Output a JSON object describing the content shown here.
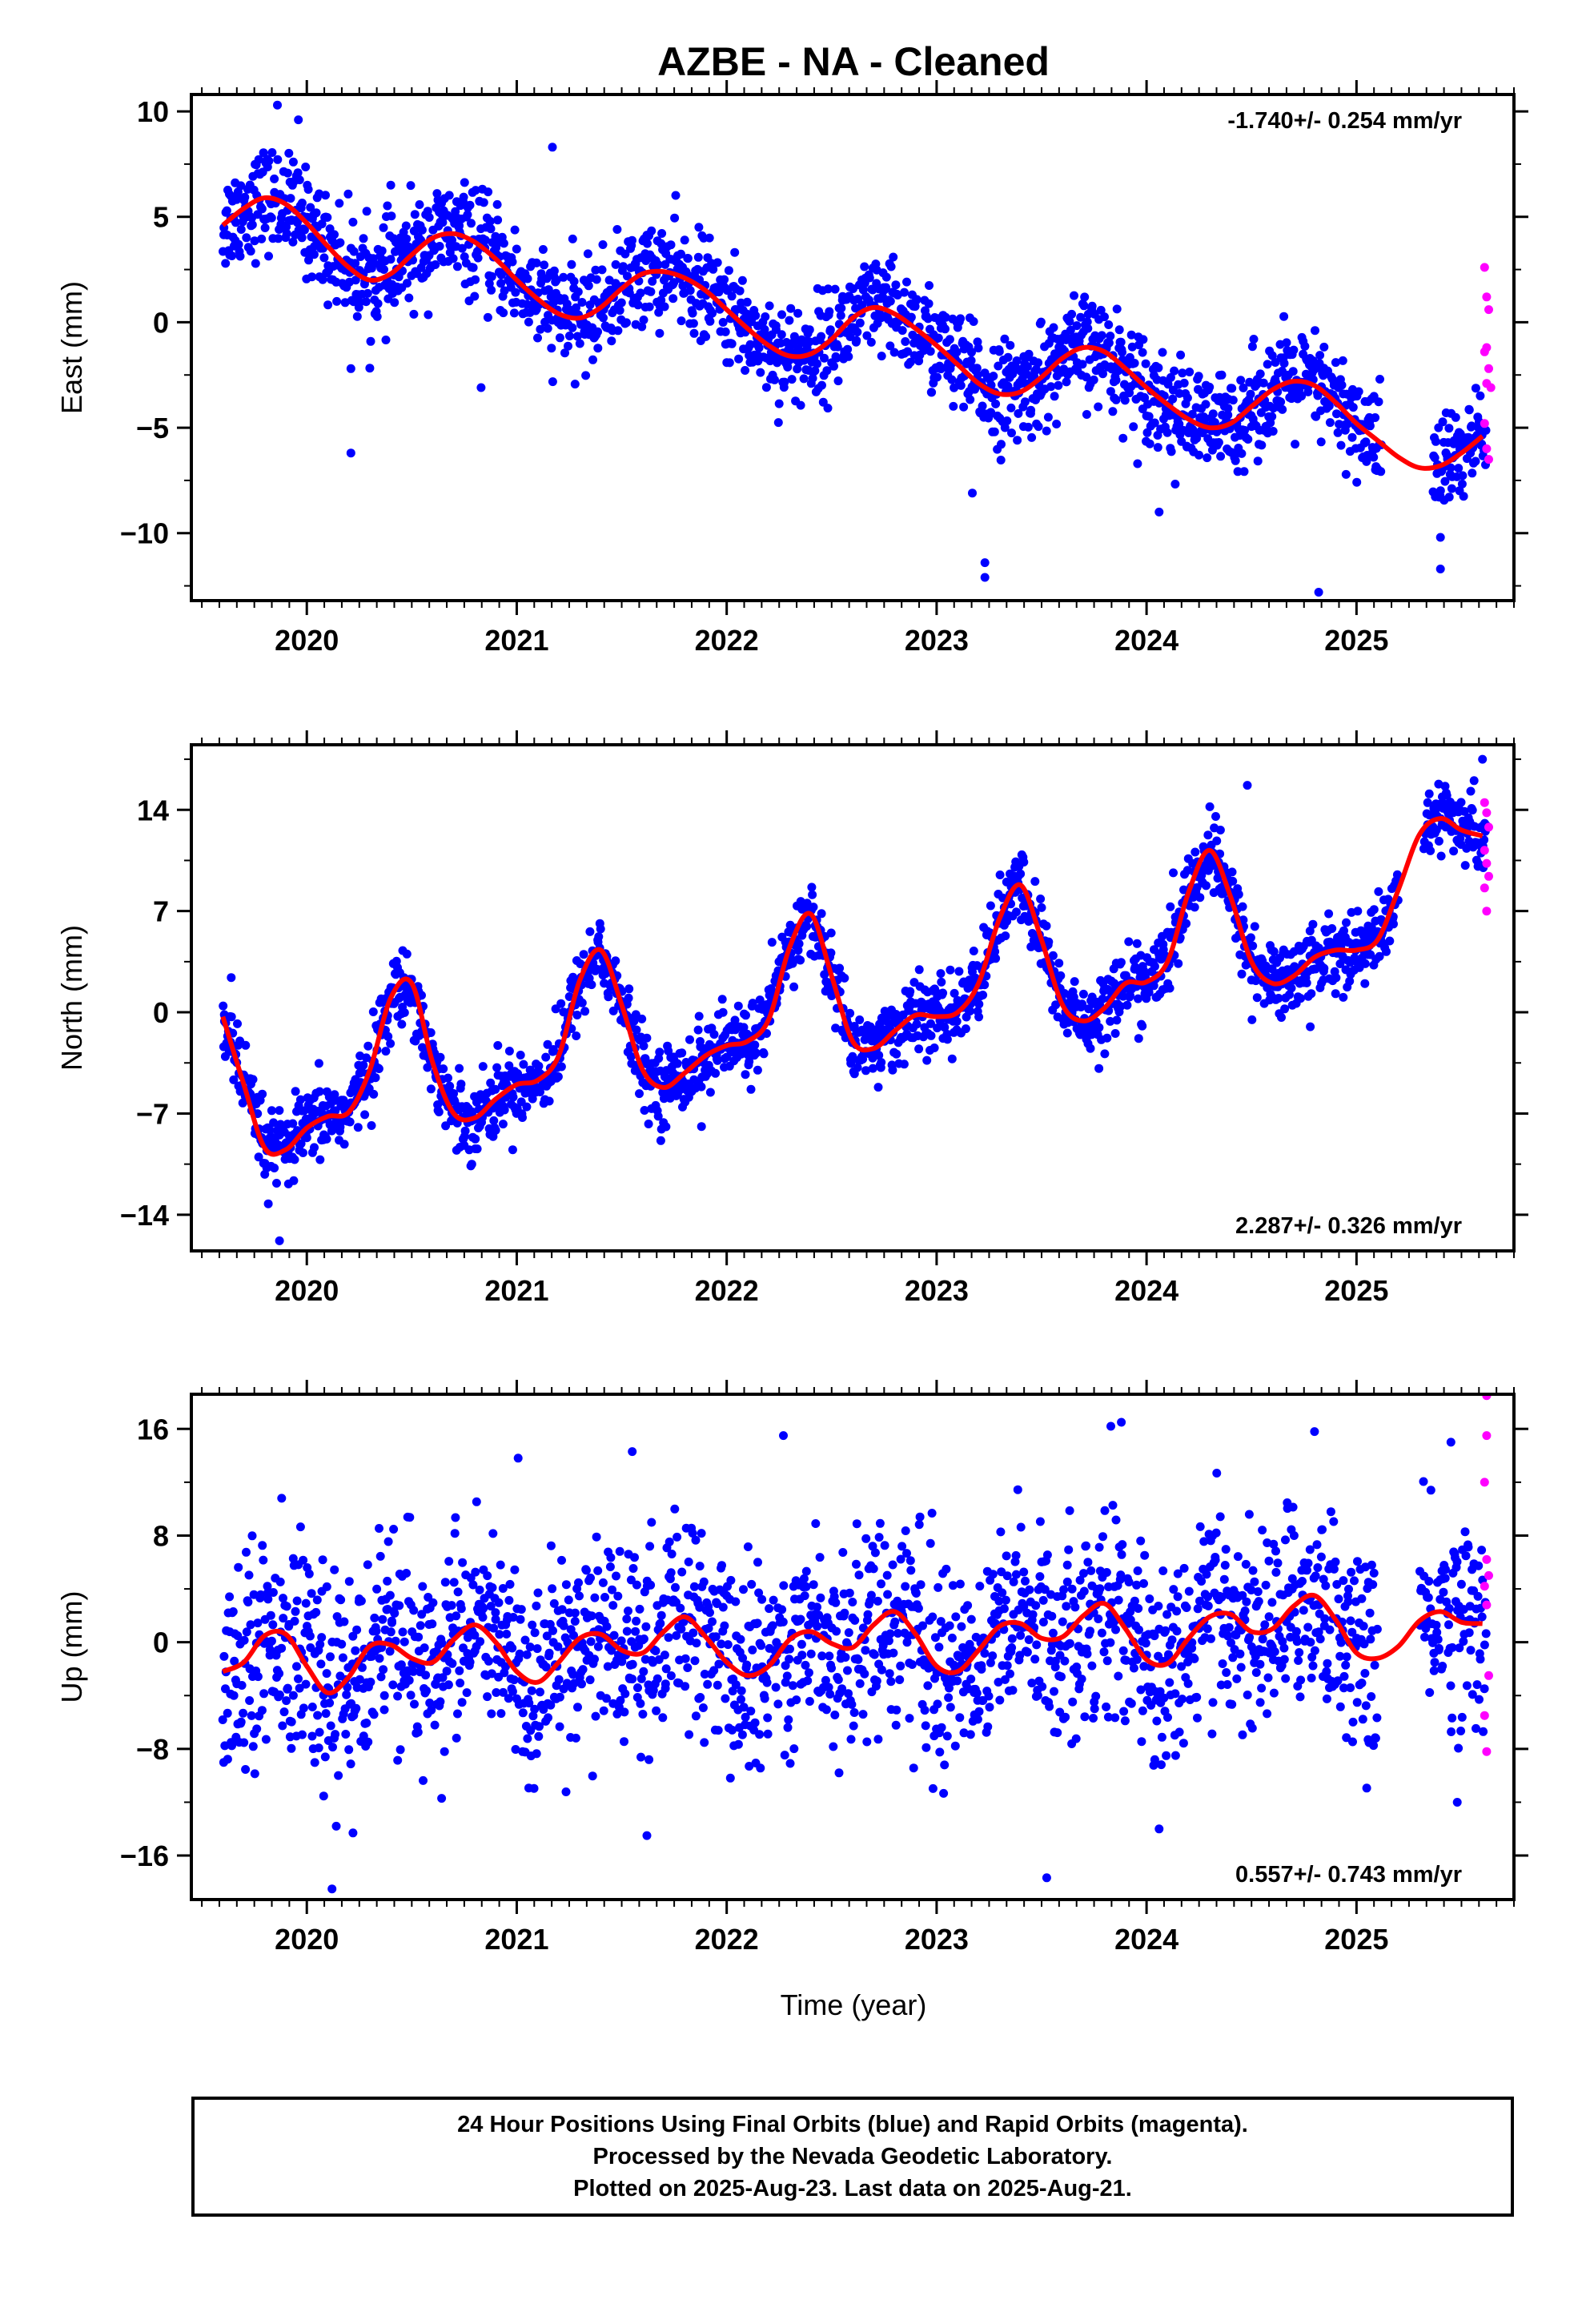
{
  "title": "AZBE  - NA - Cleaned",
  "xlabel": "Time (year)",
  "footer": {
    "line1": "24 Hour Positions Using Final Orbits (blue) and Rapid Orbits (magenta).",
    "line2": "Processed by the Nevada Geodetic Laboratory.",
    "line3": "Plotted on 2025-Aug-23. Last data on 2025-Aug-21."
  },
  "colors": {
    "final": "#0000ff",
    "rapid": "#ff00ff",
    "model": "#ff0000",
    "axis": "#000000"
  },
  "chart_data": [
    {
      "type": "scatter",
      "ylabel": "East (mm)",
      "rate_text": "-1.740+/- 0.254 mm/yr",
      "xlim": [
        2019.45,
        2025.75
      ],
      "ylim": [
        -13.2,
        10.8
      ],
      "yticks": [
        10,
        5,
        0,
        -5,
        -10
      ],
      "ytick_labels": [
        "10",
        "5",
        "0",
        "−5",
        "−10"
      ],
      "xticks": [
        2020,
        2021,
        2022,
        2023,
        2024,
        2025
      ],
      "xtick_labels": [
        "2020",
        "2021",
        "2022",
        "2023",
        "2024",
        "2025"
      ],
      "model": {
        "x": [
          2019.6,
          2019.7,
          2019.8,
          2019.9,
          2020.0,
          2020.1,
          2020.2,
          2020.3,
          2020.4,
          2020.5,
          2020.6,
          2020.7,
          2020.8,
          2020.9,
          2021.0,
          2021.1,
          2021.2,
          2021.3,
          2021.4,
          2021.5,
          2021.6,
          2021.7,
          2021.8,
          2021.9,
          2022.0,
          2022.1,
          2022.2,
          2022.3,
          2022.4,
          2022.5,
          2022.6,
          2022.7,
          2022.8,
          2022.9,
          2023.0,
          2023.1,
          2023.2,
          2023.3,
          2023.4,
          2023.5,
          2023.6,
          2023.7,
          2023.8,
          2023.9,
          2024.0,
          2024.1,
          2024.2,
          2024.3,
          2024.4,
          2024.5,
          2024.6,
          2024.7,
          2024.8,
          2024.9,
          2025.0,
          2025.1,
          2025.2,
          2025.3,
          2025.4,
          2025.5,
          2025.6
        ],
        "y": [
          4.6,
          5.4,
          5.9,
          5.6,
          4.7,
          3.6,
          2.6,
          2.0,
          2.3,
          3.2,
          4.0,
          4.2,
          3.8,
          3.0,
          2.0,
          1.1,
          0.4,
          0.2,
          0.7,
          1.6,
          2.3,
          2.4,
          2.1,
          1.5,
          0.6,
          -0.3,
          -1.1,
          -1.6,
          -1.5,
          -0.8,
          0.2,
          0.7,
          0.4,
          -0.3,
          -1.1,
          -2.0,
          -2.9,
          -3.4,
          -3.3,
          -2.6,
          -1.7,
          -1.2,
          -1.4,
          -2.2,
          -3.1,
          -3.9,
          -4.6,
          -5.0,
          -4.8,
          -4.0,
          -3.2,
          -2.8,
          -3.0,
          -3.8,
          -4.8,
          -5.6,
          -6.4,
          -6.9,
          -6.8,
          -6.2,
          -5.4
        ]
      },
      "final_band": {
        "x": [
          2019.6,
          2019.7,
          2019.8,
          2019.9,
          2020.0,
          2020.1,
          2020.2,
          2020.3,
          2020.4,
          2020.5,
          2020.6,
          2020.7,
          2020.8,
          2020.9,
          2021.0,
          2021.1,
          2021.2,
          2021.3,
          2021.4,
          2021.5,
          2021.6,
          2021.7,
          2021.8,
          2021.9,
          2022.0,
          2022.1,
          2022.2,
          2022.3,
          2022.4,
          2022.5,
          2022.6,
          2022.7,
          2022.8,
          2022.9,
          2023.0,
          2023.1,
          2023.2,
          2023.3,
          2023.4,
          2023.5,
          2023.6,
          2023.7,
          2023.8,
          2023.9,
          2024.0,
          2024.1,
          2024.2,
          2024.3,
          2024.4,
          2024.5,
          2024.6,
          2024.7,
          2024.8,
          2024.9,
          2025.0,
          2025.1,
          2025.2,
          2025.3,
          2025.4,
          2025.5,
          2025.6
        ],
        "center": [
          4.6,
          5.4,
          5.9,
          5.6,
          4.7,
          3.6,
          2.6,
          2.0,
          2.3,
          3.2,
          4.0,
          4.2,
          3.8,
          3.0,
          2.0,
          1.1,
          0.4,
          0.2,
          0.7,
          1.6,
          2.3,
          2.4,
          2.1,
          1.5,
          0.6,
          -0.3,
          -1.1,
          -1.6,
          -1.5,
          -0.8,
          0.2,
          0.7,
          0.4,
          -0.3,
          -1.1,
          -2.0,
          -2.9,
          -3.4,
          -3.3,
          -2.6,
          -1.7,
          -1.2,
          -1.4,
          -2.2,
          -3.1,
          -3.9,
          -4.6,
          -5.0,
          -4.8,
          -4.0,
          -3.2,
          -2.8,
          -3.0,
          -3.8,
          -4.8,
          -5.6,
          -6.4,
          -6.9,
          -6.8,
          -6.2,
          -5.4
        ],
        "spread": 1.6,
        "gaps": [
          [
            2025.12,
            2025.36
          ]
        ]
      },
      "final_outliers": [
        [
          2020.21,
          -6.2
        ],
        [
          2020.21,
          -2.2
        ],
        [
          2020.83,
          -3.1
        ],
        [
          2021.17,
          8.3
        ],
        [
          2023.17,
          -8.1
        ],
        [
          2023.23,
          -11.4
        ],
        [
          2023.23,
          -12.1
        ],
        [
          2024.06,
          -9.0
        ],
        [
          2024.82,
          -12.8
        ],
        [
          2025.4,
          -11.7
        ],
        [
          2025.4,
          -10.2
        ],
        [
          2019.86,
          10.3
        ],
        [
          2019.96,
          9.6
        ],
        [
          2020.4,
          6.5
        ]
      ],
      "rapid": [
        [
          2025.61,
          2.6
        ],
        [
          2025.62,
          1.2
        ],
        [
          2025.63,
          0.6
        ],
        [
          2025.62,
          -1.2
        ],
        [
          2025.61,
          -1.4
        ],
        [
          2025.63,
          -2.2
        ],
        [
          2025.62,
          -2.9
        ],
        [
          2025.64,
          -3.1
        ],
        [
          2025.61,
          -4.8
        ],
        [
          2025.62,
          -6.0
        ],
        [
          2025.63,
          -6.5
        ]
      ]
    },
    {
      "type": "scatter",
      "ylabel": "North (mm)",
      "rate_text": "2.287+/- 0.326 mm/yr",
      "xlim": [
        2019.45,
        2025.75
      ],
      "ylim": [
        -16.5,
        18.5
      ],
      "yticks": [
        14,
        7,
        0,
        -7,
        -14
      ],
      "ytick_labels": [
        "14",
        "7",
        "0",
        "−7",
        "−14"
      ],
      "xticks": [
        2020,
        2021,
        2022,
        2023,
        2024,
        2025
      ],
      "xtick_labels": [
        "2020",
        "2021",
        "2022",
        "2023",
        "2024",
        "2025"
      ],
      "model": {
        "x": [
          2019.6,
          2019.7,
          2019.8,
          2019.9,
          2020.0,
          2020.1,
          2020.2,
          2020.3,
          2020.4,
          2020.5,
          2020.6,
          2020.7,
          2020.8,
          2020.9,
          2021.0,
          2021.1,
          2021.2,
          2021.3,
          2021.4,
          2021.5,
          2021.6,
          2021.7,
          2021.8,
          2021.9,
          2022.0,
          2022.1,
          2022.2,
          2022.3,
          2022.4,
          2022.5,
          2022.6,
          2022.7,
          2022.8,
          2022.9,
          2023.0,
          2023.1,
          2023.2,
          2023.3,
          2023.4,
          2023.5,
          2023.6,
          2023.7,
          2023.8,
          2023.9,
          2024.0,
          2024.1,
          2024.2,
          2024.3,
          2024.4,
          2024.5,
          2024.6,
          2024.7,
          2024.8,
          2024.9,
          2025.0,
          2025.1,
          2025.2,
          2025.3,
          2025.4,
          2025.5,
          2025.6
        ],
        "y": [
          -0.3,
          -5.0,
          -9.4,
          -9.5,
          -8.0,
          -7.2,
          -6.9,
          -4.0,
          1.0,
          2.0,
          -3.5,
          -7.0,
          -7.3,
          -6.0,
          -5.0,
          -4.7,
          -3.0,
          2.2,
          4.3,
          0.5,
          -4.0,
          -5.2,
          -4.2,
          -3.0,
          -2.3,
          -2.0,
          -0.5,
          4.5,
          6.8,
          2.5,
          -2.0,
          -2.5,
          -1.3,
          -0.2,
          -0.3,
          0.0,
          2.0,
          6.5,
          8.8,
          5.0,
          0.5,
          -0.6,
          0.3,
          2.0,
          2.1,
          3.5,
          8.3,
          11.2,
          8.0,
          3.5,
          2.0,
          2.5,
          3.8,
          4.3,
          4.3,
          5.0,
          8.5,
          12.3,
          13.4,
          12.6,
          12.2
        ]
      },
      "final_band": {
        "x": [
          2019.6,
          2019.7,
          2019.8,
          2019.9,
          2020.0,
          2020.1,
          2020.2,
          2020.3,
          2020.4,
          2020.5,
          2020.6,
          2020.7,
          2020.8,
          2020.9,
          2021.0,
          2021.1,
          2021.2,
          2021.3,
          2021.4,
          2021.5,
          2021.6,
          2021.7,
          2021.8,
          2021.9,
          2022.0,
          2022.1,
          2022.2,
          2022.3,
          2022.4,
          2022.5,
          2022.6,
          2022.7,
          2022.8,
          2022.9,
          2023.0,
          2023.1,
          2023.2,
          2023.3,
          2023.4,
          2023.5,
          2023.6,
          2023.7,
          2023.8,
          2023.9,
          2024.0,
          2024.1,
          2024.2,
          2024.3,
          2024.4,
          2024.5,
          2024.6,
          2024.7,
          2024.8,
          2024.9,
          2025.0,
          2025.1,
          2025.2,
          2025.3,
          2025.4,
          2025.5,
          2025.6
        ],
        "center": [
          -0.3,
          -5.0,
          -9.4,
          -9.5,
          -8.0,
          -7.2,
          -6.9,
          -4.0,
          1.0,
          2.0,
          -3.5,
          -7.0,
          -7.3,
          -6.0,
          -5.0,
          -4.7,
          -3.0,
          2.2,
          4.3,
          0.5,
          -4.0,
          -5.2,
          -4.2,
          -3.0,
          -2.3,
          -2.0,
          -0.5,
          4.5,
          6.8,
          2.5,
          -2.0,
          -2.5,
          -1.3,
          -0.2,
          -0.3,
          0.0,
          2.0,
          6.5,
          8.8,
          5.0,
          0.5,
          -0.6,
          0.3,
          2.0,
          2.1,
          3.5,
          8.3,
          11.2,
          8.0,
          3.5,
          2.0,
          2.5,
          3.8,
          4.3,
          4.3,
          5.0,
          8.5,
          12.3,
          13.4,
          12.6,
          12.2
        ],
        "spread": 1.7,
        "gaps": [
          [
            2025.2,
            2025.32
          ]
        ]
      },
      "final_outliers": [
        [
          2019.87,
          -15.8
        ],
        [
          2019.64,
          2.4
        ],
        [
          2021.88,
          -7.9
        ],
        [
          2023.17,
          2.8
        ],
        [
          2024.78,
          -1.0
        ],
        [
          2024.48,
          15.7
        ],
        [
          2025.6,
          17.5
        ]
      ],
      "rapid": [
        [
          2025.61,
          14.5
        ],
        [
          2025.62,
          13.8
        ],
        [
          2025.63,
          12.8
        ],
        [
          2025.61,
          11.2
        ],
        [
          2025.62,
          10.3
        ],
        [
          2025.63,
          9.4
        ],
        [
          2025.61,
          8.6
        ],
        [
          2025.62,
          7.0
        ]
      ]
    },
    {
      "type": "scatter",
      "ylabel": "Up (mm)",
      "rate_text": "0.557+/- 0.743 mm/yr",
      "xlim": [
        2019.45,
        2025.75
      ],
      "ylim": [
        -19.3,
        18.6
      ],
      "yticks": [
        16,
        8,
        0,
        -8,
        -16
      ],
      "ytick_labels": [
        "16",
        "8",
        "0",
        "−8",
        "−16"
      ],
      "xticks": [
        2020,
        2021,
        2022,
        2023,
        2024,
        2025
      ],
      "xtick_labels": [
        "2020",
        "2021",
        "2022",
        "2023",
        "2024",
        "2025"
      ],
      "model": {
        "x": [
          2019.6,
          2019.7,
          2019.8,
          2019.9,
          2020.0,
          2020.1,
          2020.2,
          2020.3,
          2020.4,
          2020.5,
          2020.6,
          2020.7,
          2020.8,
          2020.9,
          2021.0,
          2021.1,
          2021.2,
          2021.3,
          2021.4,
          2021.5,
          2021.6,
          2021.7,
          2021.8,
          2021.9,
          2022.0,
          2022.1,
          2022.2,
          2022.3,
          2022.4,
          2022.5,
          2022.6,
          2022.7,
          2022.8,
          2022.9,
          2023.0,
          2023.1,
          2023.2,
          2023.3,
          2023.4,
          2023.5,
          2023.6,
          2023.7,
          2023.8,
          2023.9,
          2024.0,
          2024.1,
          2024.2,
          2024.3,
          2024.4,
          2024.5,
          2024.6,
          2024.7,
          2024.8,
          2024.9,
          2025.0,
          2025.1,
          2025.2,
          2025.3,
          2025.4,
          2025.5,
          2025.6
        ],
        "y": [
          -2.2,
          -1.5,
          0.5,
          0.6,
          -1.8,
          -3.8,
          -2.6,
          -0.3,
          -0.2,
          -1.2,
          -1.5,
          0.2,
          1.3,
          0.0,
          -2.2,
          -3.0,
          -1.5,
          0.3,
          0.6,
          -0.6,
          -0.8,
          0.8,
          1.9,
          0.4,
          -1.5,
          -2.5,
          -1.8,
          0.2,
          0.8,
          -0.1,
          -0.4,
          1.3,
          2.3,
          0.6,
          -1.8,
          -2.2,
          -0.6,
          1.2,
          1.4,
          0.3,
          0.4,
          2.0,
          2.9,
          1.0,
          -1.3,
          -1.6,
          0.3,
          1.9,
          2.1,
          0.8,
          1.0,
          2.7,
          3.5,
          1.7,
          -0.8,
          -1.2,
          -0.3,
          1.6,
          2.3,
          1.5,
          1.4
        ]
      },
      "final_band": {
        "x": [
          2019.6,
          2019.7,
          2019.8,
          2019.9,
          2020.0,
          2020.1,
          2020.2,
          2020.3,
          2020.4,
          2020.5,
          2020.6,
          2020.7,
          2020.8,
          2020.9,
          2021.0,
          2021.1,
          2021.2,
          2021.3,
          2021.4,
          2021.5,
          2021.6,
          2021.7,
          2021.8,
          2021.9,
          2022.0,
          2022.1,
          2022.2,
          2022.3,
          2022.4,
          2022.5,
          2022.6,
          2022.7,
          2022.8,
          2022.9,
          2023.0,
          2023.1,
          2023.2,
          2023.3,
          2023.4,
          2023.5,
          2023.6,
          2023.7,
          2023.8,
          2023.9,
          2024.0,
          2024.1,
          2024.2,
          2024.3,
          2024.4,
          2024.5,
          2024.6,
          2024.7,
          2024.8,
          2024.9,
          2025.0,
          2025.1,
          2025.2,
          2025.3,
          2025.4,
          2025.5,
          2025.6
        ],
        "center": [
          -2.2,
          -1.5,
          0.5,
          0.6,
          -1.8,
          -3.8,
          -2.6,
          -0.3,
          -0.2,
          -1.2,
          -1.5,
          0.2,
          1.3,
          0.0,
          -2.2,
          -3.0,
          -1.5,
          0.3,
          0.6,
          -0.6,
          -0.8,
          0.8,
          1.9,
          0.4,
          -1.5,
          -2.5,
          -1.8,
          0.2,
          0.8,
          -0.1,
          -0.4,
          1.3,
          2.3,
          0.6,
          -1.8,
          -2.2,
          -0.6,
          1.2,
          1.4,
          0.3,
          0.4,
          2.0,
          2.9,
          1.0,
          -1.3,
          -1.6,
          0.3,
          1.9,
          2.1,
          0.8,
          1.0,
          2.7,
          3.5,
          1.7,
          -0.8,
          -1.2,
          -0.3,
          1.6,
          2.3,
          1.5,
          1.4
        ],
        "spread": 5.0,
        "gaps": [
          [
            2025.1,
            2025.3
          ]
        ]
      },
      "final_outliers": [
        [
          2020.12,
          -18.5
        ],
        [
          2020.22,
          -14.3
        ],
        [
          2021.55,
          14.3
        ],
        [
          2021.62,
          -14.5
        ],
        [
          2022.27,
          15.5
        ],
        [
          2023.83,
          16.2
        ],
        [
          2023.88,
          16.5
        ],
        [
          2024.8,
          15.8
        ],
        [
          2024.06,
          -14.0
        ],
        [
          2025.45,
          15.0
        ],
        [
          2025.48,
          -12.0
        ],
        [
          2019.88,
          10.8
        ]
      ],
      "rapid": [
        [
          2025.62,
          18.5
        ],
        [
          2025.62,
          15.5
        ],
        [
          2025.61,
          12.0
        ],
        [
          2025.62,
          6.2
        ],
        [
          2025.63,
          5.0
        ],
        [
          2025.61,
          4.2
        ],
        [
          2025.62,
          2.8
        ],
        [
          2025.63,
          -2.5
        ],
        [
          2025.61,
          -5.5
        ],
        [
          2025.62,
          -8.2
        ]
      ]
    }
  ]
}
